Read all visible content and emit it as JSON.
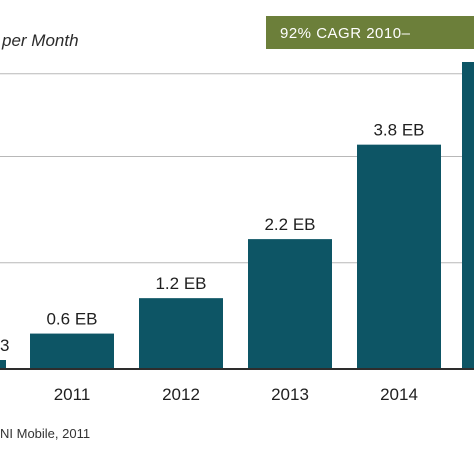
{
  "chart_data": {
    "type": "bar",
    "categories": [
      "2011",
      "2012",
      "2013",
      "2014"
    ],
    "values": [
      0.6,
      1.2,
      2.2,
      3.8
    ],
    "data_labels": [
      "0.6 EB",
      "1.2 EB",
      "2.2 EB",
      "3.8 EB"
    ],
    "ylabel": "per Month",
    "ylim": [
      0,
      5.2
    ],
    "grid": true,
    "gridlines": [
      1.8,
      3.6,
      5.0
    ],
    "cagr_label": "92% CAGR 2010–",
    "source": "NI Mobile, 2011",
    "partial_left_label": "3"
  },
  "colors": {
    "bar": "#0d5565",
    "cagr_box": "#6c7f3a",
    "grid": "#b8b8b8",
    "axis": "#2d2d2d"
  }
}
